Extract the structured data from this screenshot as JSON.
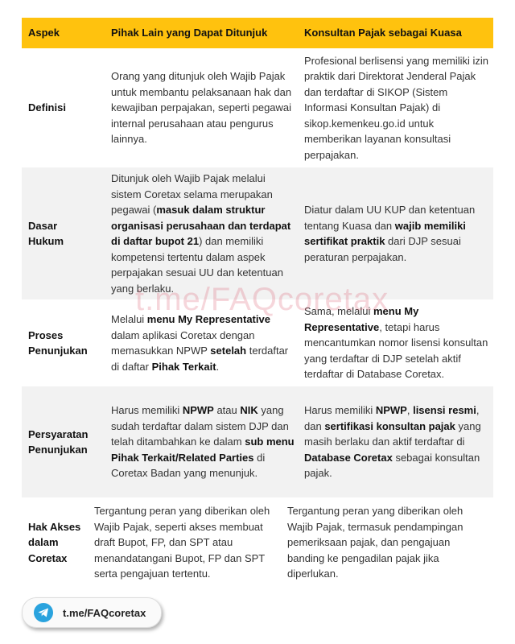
{
  "header": {
    "aspek": "Aspek",
    "pihak_lain": "Pihak Lain yang Dapat Ditunjuk",
    "konsultan": "Konsultan Pajak sebagai Kuasa"
  },
  "colors": {
    "header_bg": "#FFC20E",
    "alt_row_bg": "#f2f2f2",
    "telegram": "#2AA3DE"
  },
  "rows": [
    {
      "aspek": "Definisi",
      "pihak_lain": [
        {
          "t": "Orang yang ditunjuk oleh Wajib Pajak untuk membantu pelaksanaan hak dan kewajiban perpajakan, seperti pegawai internal perusahaan atau pengurus lainnya.",
          "b": false
        }
      ],
      "konsultan": [
        {
          "t": "Profesional berlisensi yang memiliki izin praktik dari Direktorat Jenderal Pajak dan terdaftar di SIKOP (Sistem Informasi Konsultan Pajak) di sikop.kemenkeu.go.id untuk memberikan layanan konsultasi perpajakan.",
          "b": false
        }
      ]
    },
    {
      "aspek": "Dasar Hukum",
      "pihak_lain": [
        {
          "t": "Ditunjuk oleh Wajib Pajak melalui sistem Coretax selama merupakan pegawai (",
          "b": false
        },
        {
          "t": "masuk dalam struktur organisasi perusahaan dan terdapat di daftar bupot 21",
          "b": true
        },
        {
          "t": ") dan memiliki kompetensi tertentu dalam aspek perpajakan sesuai UU dan ketentuan yang berlaku.",
          "b": false
        }
      ],
      "konsultan": [
        {
          "t": "Diatur dalam UU KUP dan ketentuan tentang Kuasa dan ",
          "b": false
        },
        {
          "t": "wajib memiliki sertifikat praktik",
          "b": true
        },
        {
          "t": " dari DJP sesuai peraturan perpajakan.",
          "b": false
        }
      ]
    },
    {
      "aspek": "Proses Penunjukan",
      "pihak_lain": [
        {
          "t": "Melalui ",
          "b": false
        },
        {
          "t": "menu My Representative",
          "b": true
        },
        {
          "t": " dalam aplikasi Coretax dengan memasukkan NPWP ",
          "b": false
        },
        {
          "t": "setelah",
          "b": true
        },
        {
          "t": " terdaftar di daftar ",
          "b": false
        },
        {
          "t": "Pihak Terkait",
          "b": true
        },
        {
          "t": ".",
          "b": false
        }
      ],
      "konsultan": [
        {
          "t": "Sama, melalui ",
          "b": false
        },
        {
          "t": "menu My Representative",
          "b": true
        },
        {
          "t": ", tetapi harus mencantumkan nomor lisensi konsultan yang terdaftar di DJP setelah aktif terdaftar di Database Coretax.",
          "b": false
        }
      ]
    },
    {
      "aspek": "Persyaratan Penunjukan",
      "pihak_lain": [
        {
          "t": "Harus memiliki ",
          "b": false
        },
        {
          "t": "NPWP",
          "b": true
        },
        {
          "t": " atau ",
          "b": false
        },
        {
          "t": "NIK",
          "b": true
        },
        {
          "t": " yang sudah terdaftar dalam sistem DJP dan telah ditambahkan ke dalam ",
          "b": false
        },
        {
          "t": "sub menu Pihak Terkait/Related Parties",
          "b": true
        },
        {
          "t": " di Coretax Badan yang menunjuk.",
          "b": false
        }
      ],
      "konsultan": [
        {
          "t": "Harus memiliki ",
          "b": false
        },
        {
          "t": "NPWP",
          "b": true
        },
        {
          "t": ", ",
          "b": false
        },
        {
          "t": "lisensi resmi",
          "b": true
        },
        {
          "t": ", dan ",
          "b": false
        },
        {
          "t": "sertifikasi konsultan pajak",
          "b": true
        },
        {
          "t": " yang masih berlaku dan aktif terdaftar di  ",
          "b": false
        },
        {
          "t": "Database Coretax",
          "b": true
        },
        {
          "t": " sebagai konsultan pajak.",
          "b": false
        }
      ]
    },
    {
      "aspek": "Hak Akses dalam Coretax",
      "pihak_lain": [
        {
          "t": "Tergantung peran yang diberikan oleh Wajib Pajak, seperti akses membuat draft Bupot, FP, dan SPT atau menandatangani Bupot, FP dan SPT serta pengajuan tertentu.",
          "b": false
        }
      ],
      "konsultan": [
        {
          "t": "Tergantung peran yang diberikan oleh Wajib Pajak, termasuk pendampingan pemeriksaan pajak, dan pengajuan banding ke pengadilan pajak jika diperlukan.",
          "b": false
        }
      ]
    }
  ],
  "watermark": "t.me/FAQcoretax",
  "telegram_button": {
    "label": "t.me/FAQcoretax",
    "icon": "telegram-icon"
  }
}
